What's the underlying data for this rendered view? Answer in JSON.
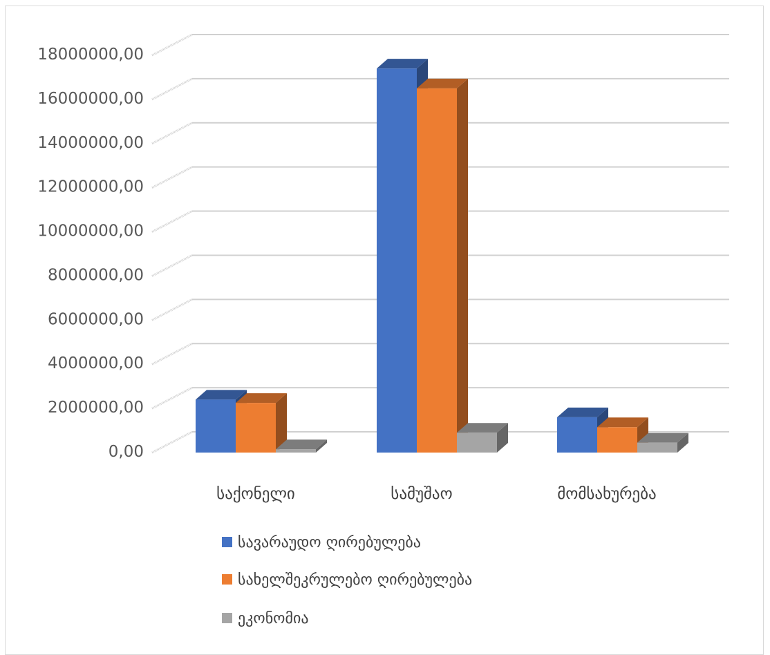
{
  "chart_data": {
    "type": "bar",
    "style": "3d-clustered-column",
    "categories": [
      "საქონელი",
      "სამუშაო",
      "მომსახურება"
    ],
    "series": [
      {
        "name": "სავარაუდო ღირებულება",
        "color": "#4472C4",
        "values": [
          2400000,
          17400000,
          1600000
        ]
      },
      {
        "name": "სახელშეკრულებო ღირებულება",
        "color": "#ED7D31",
        "values": [
          2250000,
          16500000,
          1150000
        ]
      },
      {
        "name": "ეკონომია",
        "color": "#A5A5A5",
        "values": [
          150000,
          900000,
          450000
        ]
      }
    ],
    "y_ticks": [
      "0,00",
      "2000000,00",
      "4000000,00",
      "6000000,00",
      "8000000,00",
      "10000000,00",
      "12000000,00",
      "14000000,00",
      "16000000,00",
      "18000000,00"
    ],
    "ylim": [
      0,
      18000000
    ],
    "grid": true,
    "legend_position": "bottom",
    "title": "",
    "xlabel": "",
    "ylabel": ""
  }
}
